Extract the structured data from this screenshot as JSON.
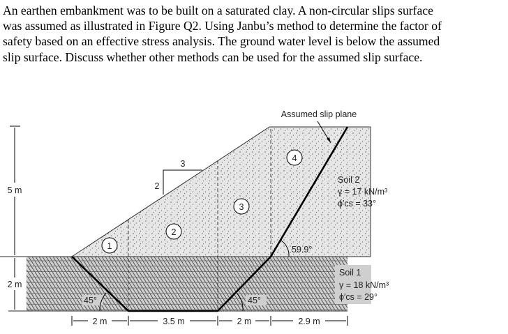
{
  "question": {
    "lines": [
      "An earthen embankment was to be built on a saturated clay. A non-circular slips surface",
      "was assumed as illustrated in Figure Q2. Using Janbu’s method to determine the factor of",
      "safety based on an effective stress analysis. The ground water level is below the assumed",
      "slip surface. Discuss whether other methods can be used for the assumed slip surface."
    ]
  },
  "figure": {
    "slip_label": "Assumed slip plane",
    "height_upper": "5 m",
    "height_lower": "2 m",
    "slope_rise": "2",
    "slope_run": "3",
    "slices": [
      "1",
      "2",
      "3",
      "4"
    ],
    "angle_left": "45°",
    "angle_right": "45°",
    "angle_top": "59.9°",
    "widths": [
      "2 m",
      "3.5 m",
      "2 m",
      "2.9 m"
    ],
    "soil2": {
      "name": "Soil 2",
      "gamma": "γ = 17 kN/m³",
      "phi": "ϕ′cs = 33°"
    },
    "soil1": {
      "name": "Soil 1",
      "gamma": "γ = 18 kN/m³",
      "phi": "ϕ′cs = 29°"
    }
  }
}
